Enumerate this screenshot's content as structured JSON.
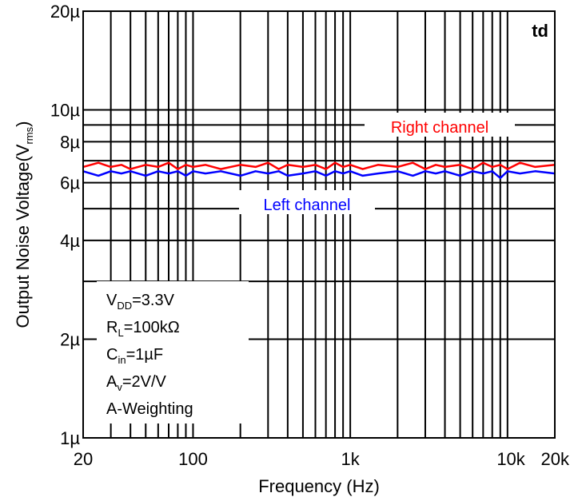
{
  "chart_data": {
    "type": "line",
    "title": "",
    "corner_label": "td",
    "xlabel": "Frequency (Hz)",
    "ylabel": "Output Noise Voltage(V",
    "ylabel_sub": "rms",
    "ylabel_close": ")",
    "x_scale": "log",
    "y_scale": "log",
    "xlim": [
      20,
      20000
    ],
    "ylim": [
      1e-06,
      2e-05
    ],
    "grid": true,
    "x_ticks": [
      {
        "value": 20,
        "label": "20"
      },
      {
        "value": 100,
        "label": "100"
      },
      {
        "value": 1000,
        "label": "1k"
      },
      {
        "value": 10000,
        "label": "10k"
      },
      {
        "value": 20000,
        "label": "20k"
      }
    ],
    "y_ticks": [
      {
        "value": 1e-06,
        "label": "1µ"
      },
      {
        "value": 2e-06,
        "label": "2µ"
      },
      {
        "value": 4e-06,
        "label": "4µ"
      },
      {
        "value": 6e-06,
        "label": "6µ"
      },
      {
        "value": 8e-06,
        "label": "8µ"
      },
      {
        "value": 1e-05,
        "label": "10µ"
      },
      {
        "value": 2e-05,
        "label": "20µ"
      }
    ],
    "series": [
      {
        "name": "Right channel",
        "color": "#ff0000",
        "x": [
          20,
          25,
          30,
          35,
          40,
          50,
          60,
          70,
          80,
          90,
          100,
          120,
          150,
          200,
          250,
          300,
          350,
          400,
          500,
          600,
          700,
          800,
          900,
          1000,
          1200,
          1500,
          2000,
          2500,
          3000,
          3500,
          4000,
          5000,
          6000,
          7000,
          8000,
          9000,
          10000,
          12000,
          15000,
          20000
        ],
        "y": [
          6.7e-06,
          6.9e-06,
          6.7e-06,
          6.8e-06,
          6.6e-06,
          6.8e-06,
          6.7e-06,
          6.9e-06,
          6.6e-06,
          6.8e-06,
          6.7e-06,
          6.8e-06,
          6.6e-06,
          6.8e-06,
          6.7e-06,
          6.9e-06,
          6.6e-06,
          6.8e-06,
          6.7e-06,
          6.8e-06,
          6.6e-06,
          6.9e-06,
          6.7e-06,
          6.8e-06,
          6.6e-06,
          6.8e-06,
          6.7e-06,
          6.9e-06,
          6.6e-06,
          6.8e-06,
          6.7e-06,
          6.8e-06,
          6.6e-06,
          6.9e-06,
          6.7e-06,
          6.8e-06,
          6.6e-06,
          6.9e-06,
          6.7e-06,
          6.8e-06
        ]
      },
      {
        "name": "Left channel",
        "color": "#0000ff",
        "x": [
          20,
          25,
          30,
          35,
          40,
          50,
          60,
          70,
          80,
          90,
          100,
          120,
          150,
          200,
          250,
          300,
          350,
          400,
          500,
          600,
          700,
          800,
          900,
          1000,
          1200,
          1500,
          2000,
          2500,
          3000,
          3500,
          4000,
          5000,
          6000,
          7000,
          8000,
          9000,
          10000,
          12000,
          15000,
          20000
        ],
        "y": [
          6.5e-06,
          6.3e-06,
          6.5e-06,
          6.4e-06,
          6.5e-06,
          6.3e-06,
          6.5e-06,
          6.4e-06,
          6.5e-06,
          6.3e-06,
          6.5e-06,
          6.4e-06,
          6.5e-06,
          6.3e-06,
          6.5e-06,
          6.4e-06,
          6.5e-06,
          6.3e-06,
          6.4e-06,
          6.5e-06,
          6.3e-06,
          6.5e-06,
          6.4e-06,
          6.5e-06,
          6.3e-06,
          6.4e-06,
          6.5e-06,
          6.3e-06,
          6.5e-06,
          6.4e-06,
          6.5e-06,
          6.3e-06,
          6.5e-06,
          6.4e-06,
          6.5e-06,
          6.2e-06,
          6.5e-06,
          6.4e-06,
          6.5e-06,
          6.4e-06
        ]
      }
    ],
    "conditions": [
      {
        "main": "V",
        "sub": "DD",
        "rest": "=3.3V"
      },
      {
        "main": "R",
        "sub": "L",
        "rest": "=100kΩ"
      },
      {
        "main": "C",
        "sub": "in",
        "rest": "=1µF"
      },
      {
        "main": "A",
        "sub": "v",
        "rest": "=2V/V"
      },
      {
        "main": "A-Weighting",
        "sub": "",
        "rest": ""
      }
    ]
  }
}
